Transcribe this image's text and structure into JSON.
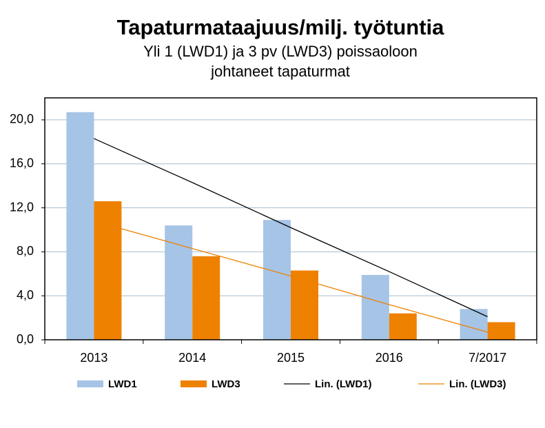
{
  "chart_data": {
    "type": "bar",
    "title": "Tapaturmataajuus/milj. työtuntia",
    "subtitle": [
      "Yli 1 (LWD1) ja 3 pv (LWD3) poissaoloon",
      "johtaneet tapaturmat"
    ],
    "categories": [
      "2013",
      "2014",
      "2015",
      "2016",
      "7/2017"
    ],
    "series": [
      {
        "name": "LWD1",
        "type": "bar",
        "color": "#a6c4e6",
        "values": [
          20.7,
          10.4,
          10.9,
          5.9,
          2.8
        ]
      },
      {
        "name": "LWD3",
        "type": "bar",
        "color": "#ee8100",
        "values": [
          12.6,
          7.6,
          6.3,
          2.4,
          1.6
        ]
      },
      {
        "name": "Lin. (LWD1)",
        "type": "line",
        "color": "#000000",
        "values": [
          18.3,
          14.3,
          10.2,
          6.2,
          2.1
        ]
      },
      {
        "name": "Lin. (LWD3)",
        "type": "line",
        "color": "#ee8100",
        "values": [
          10.8,
          8.3,
          5.8,
          3.2,
          0.7
        ]
      }
    ],
    "ylim": [
      0,
      22
    ],
    "yticks": [
      {
        "value": 0,
        "label": "0,0"
      },
      {
        "value": 4,
        "label": "4,0"
      },
      {
        "value": 8,
        "label": "8,0"
      },
      {
        "value": 12,
        "label": "12,0"
      },
      {
        "value": 16,
        "label": "16,0"
      },
      {
        "value": 20,
        "label": "20,0"
      }
    ],
    "grid": true,
    "legend": "bottom"
  }
}
